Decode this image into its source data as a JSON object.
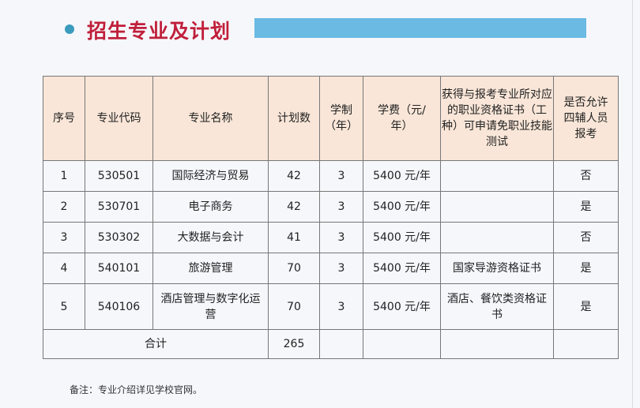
{
  "section_title": "招生专业及计划",
  "colors": {
    "title": "#c01f3a",
    "accent_bar": "#6abae4",
    "bullet": "#3a9bbd",
    "header_bg": "#f9e6d8"
  },
  "table": {
    "headers": [
      "序号",
      "专业代码",
      "专业名称",
      "计划数",
      "学制（年）",
      "学费（元/年）",
      "获得与报考专业所对应的职业资格证书（工种）可申请免职业技能测试",
      "是否允许四辅人员报考"
    ],
    "rows": [
      [
        "1",
        "530501",
        "国际经济与贸易",
        "42",
        "3",
        "5400 元/年",
        "",
        "否"
      ],
      [
        "2",
        "530701",
        "电子商务",
        "42",
        "3",
        "5400 元/年",
        "",
        "是"
      ],
      [
        "3",
        "530302",
        "大数据与会计",
        "41",
        "3",
        "5400 元/年",
        "",
        "否"
      ],
      [
        "4",
        "540101",
        "旅游管理",
        "70",
        "3",
        "5400 元/年",
        "国家导游资格证书",
        "是"
      ],
      [
        "5",
        "540106",
        "酒店管理与数字化运营",
        "70",
        "3",
        "5400 元/年",
        "酒店、餐饮类资格证书",
        "是"
      ]
    ],
    "total_label": "合计",
    "total_value": "265"
  },
  "note": "备注：专业介绍详见学校官网。"
}
